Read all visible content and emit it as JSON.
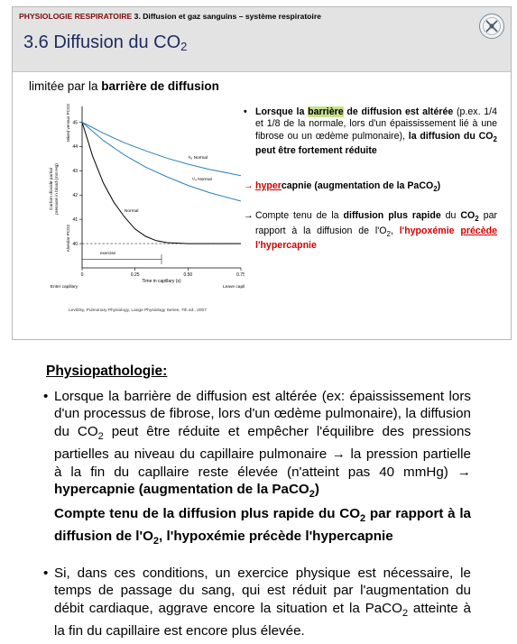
{
  "header": {
    "course": "PHYSIOLOGIE RESPIRATOIRE",
    "chapter": " 3. Diffusion et gaz sanguins – système respiratoire",
    "title_main": "3.6 Diffusion du CO",
    "title_sub": "2"
  },
  "subtitle": {
    "pre": "limitée par la ",
    "bold": "barrière de diffusion"
  },
  "right_col": {
    "bullet": "•",
    "p1": [
      "Lorsque la ",
      "barrière",
      " de diffusion est altérée",
      " (p.ex. 1/4 et 1/8 de la normale, lors d'un épaississement lié à une fibrose ou un œdème pulmonaire), ",
      "la diffusion du CO",
      "2",
      " peut être fortement réduite"
    ],
    "arrow1": [
      "→",
      "hyper",
      "capnie",
      " (augmentation de la PaCO",
      "2",
      ")"
    ],
    "arrow2": [
      "→",
      "Compte tenu de la ",
      "diffusion plus rapide",
      " du ",
      "CO",
      "2",
      " par rapport à la diffusion de l'O",
      "2",
      ", ",
      "l'hypoxémie ",
      "précède",
      " l'hypercapnie"
    ]
  },
  "chart_data": {
    "type": "line",
    "title": "",
    "xlabel": "Time in capillary (s)",
    "ylabel_lines": [
      "Carbon dioxide partial",
      "pressure in blood (mm Hg)"
    ],
    "ylabel_left": [
      "Alveolar P",
      "CO2"
    ],
    "ylabel_right": [
      "Mixed venous P",
      "CO2"
    ],
    "xlim": [
      0,
      0.75
    ],
    "ylim": [
      39,
      45.5
    ],
    "x_ticks": [
      0,
      0.25,
      0.5,
      0.75
    ],
    "x_tick_labels": [
      "0",
      "0.25",
      "0.50",
      "0.75"
    ],
    "y_ticks": [
      40,
      41,
      42,
      43,
      44,
      45
    ],
    "y_tick_labels": [
      "40",
      "41",
      "42",
      "43",
      "44",
      "45"
    ],
    "x_end_labels": [
      "Enter capillary",
      "Leave capillary"
    ],
    "exercise_label": "exercise",
    "series": [
      {
        "name": "Normal",
        "x": [
          0,
          0.05,
          0.1,
          0.15,
          0.2,
          0.25,
          0.3,
          0.35,
          0.4,
          0.5,
          0.6,
          0.75
        ],
        "y": [
          45,
          43.6,
          42.5,
          41.7,
          41.1,
          40.6,
          40.3,
          40.12,
          40.04,
          40,
          40,
          40
        ]
      },
      {
        "name": "¹/₄ Normal",
        "x": [
          0,
          0.1,
          0.2,
          0.3,
          0.4,
          0.5,
          0.6,
          0.75
        ],
        "y": [
          45,
          44.25,
          43.65,
          43.15,
          42.75,
          42.4,
          42.1,
          41.75
        ]
      },
      {
        "name": "¹/₈ Normal",
        "x": [
          0,
          0.1,
          0.2,
          0.3,
          0.4,
          0.5,
          0.6,
          0.75
        ],
        "y": [
          45,
          44.55,
          44.15,
          43.82,
          43.52,
          43.27,
          43.06,
          42.8
        ]
      }
    ],
    "reference_line": {
      "y": 40,
      "style": "dashed"
    },
    "exercise_x": 0.375,
    "colors": {
      "normal": "#000000",
      "reduced": "#2f7fb6"
    }
  },
  "citation": "Levitzky, Pulmonary Physiology, Lange Physiology Series, 7th ed., 2007",
  "physio_heading": "Physiopathologie:",
  "para1": [
    "Lorsque la barrière de diffusion est altérée (ex: épaississement lors d'un processus de fibrose, lors d'un œdème pulmonaire), la diffusion du CO",
    "2",
    " peut être réduite et empêcher l'équilibre des pressions partielles au niveau du capillaire pulmonaire → la pression partielle à la fin du capllaire reste élevée (n'atteint pas 40 mmHg) → ",
    "hypercapnie (augmentation de la PaCO",
    "2",
    ")",
    "Compte tenu de la diffusion plus rapide du CO",
    "2",
    " par rapport à la diffusion de l'O",
    "2",
    ", l'hypoxémie précède l'hypercapnie"
  ],
  "para2": [
    "Si, dans ces conditions, un exercice physique est nécessaire, le temps de passage du sang, qui est réduit par l'augmentation du débit cardiaque, aggrave encore la situation et la PaCO",
    "2",
    " atteinte à la fin du capillaire est encore plus élevée."
  ],
  "bullet": "•"
}
